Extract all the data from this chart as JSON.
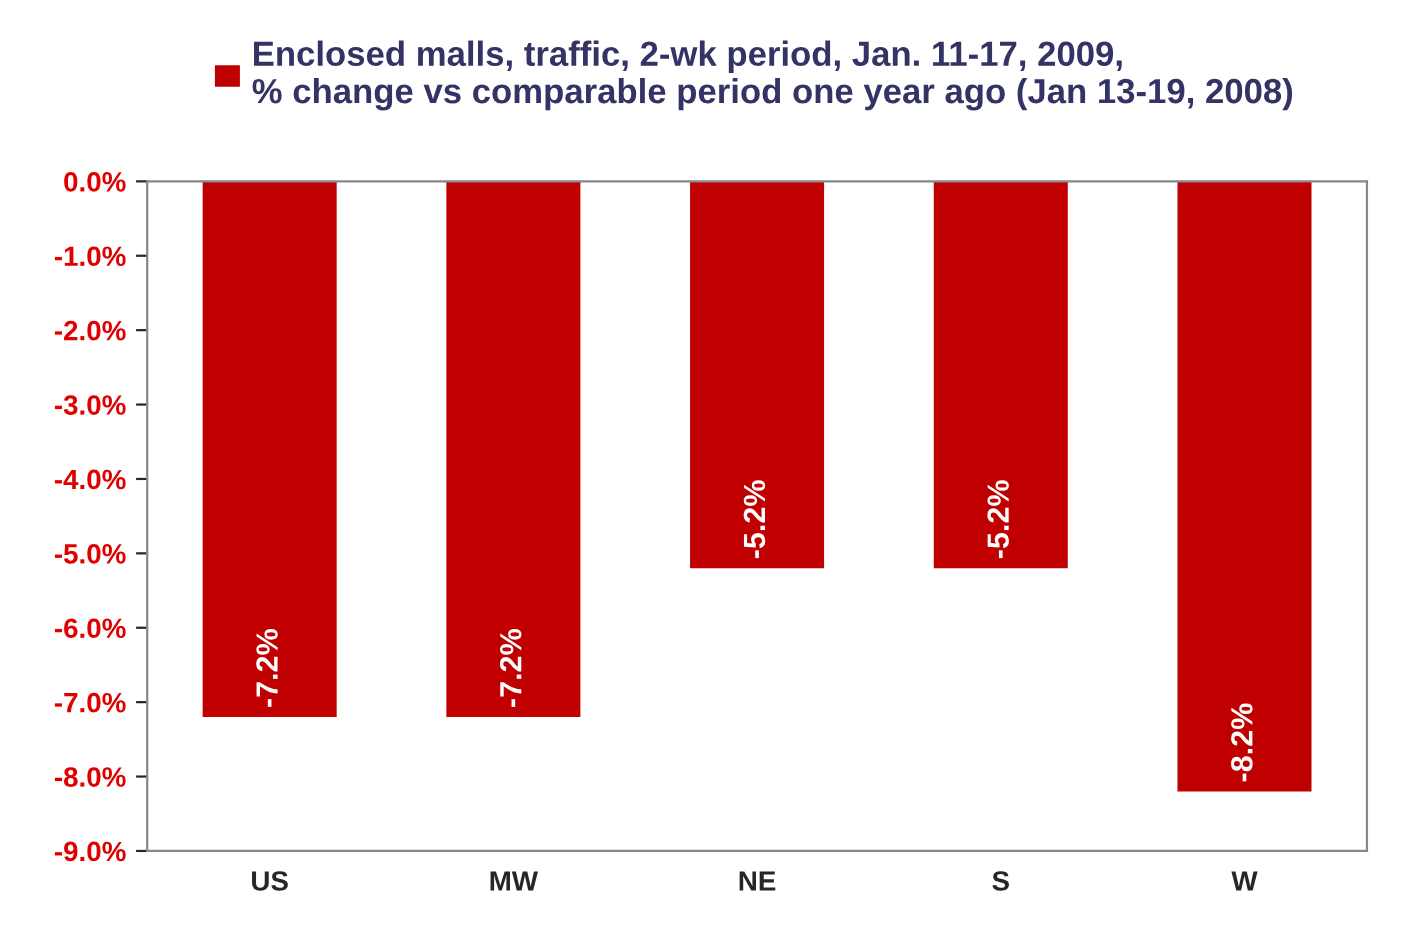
{
  "chart_data": {
    "type": "bar",
    "categories": [
      "US",
      "MW",
      "NE",
      "S",
      "W"
    ],
    "series": [
      {
        "name": "Enclosed malls, traffic, 2-wk period, Jan. 11-17, 2009,\n% change vs comparable period one year ago (Jan 13-19, 2008)",
        "color": "#c00000",
        "values": [
          -7.2,
          -7.2,
          -5.2,
          -5.2,
          -8.2
        ],
        "value_labels": [
          "-7.2%",
          "-7.2%",
          "-5.2%",
          "-5.2%",
          "-8.2%"
        ]
      }
    ],
    "ylim": [
      -9,
      0
    ],
    "yticks": [
      {
        "value": 0,
        "label": "0.0%"
      },
      {
        "value": -1,
        "label": "-1.0%"
      },
      {
        "value": -2,
        "label": "-2.0%"
      },
      {
        "value": -3,
        "label": "-3.0%"
      },
      {
        "value": -4,
        "label": "-4.0%"
      },
      {
        "value": -5,
        "label": "-5.0%"
      },
      {
        "value": -6,
        "label": "-6.0%"
      },
      {
        "value": -7,
        "label": "-7.0%"
      },
      {
        "value": -8,
        "label": "-8.0%"
      },
      {
        "value": -9,
        "label": "-9.0%"
      }
    ],
    "legend": "top left",
    "grid": false
  }
}
